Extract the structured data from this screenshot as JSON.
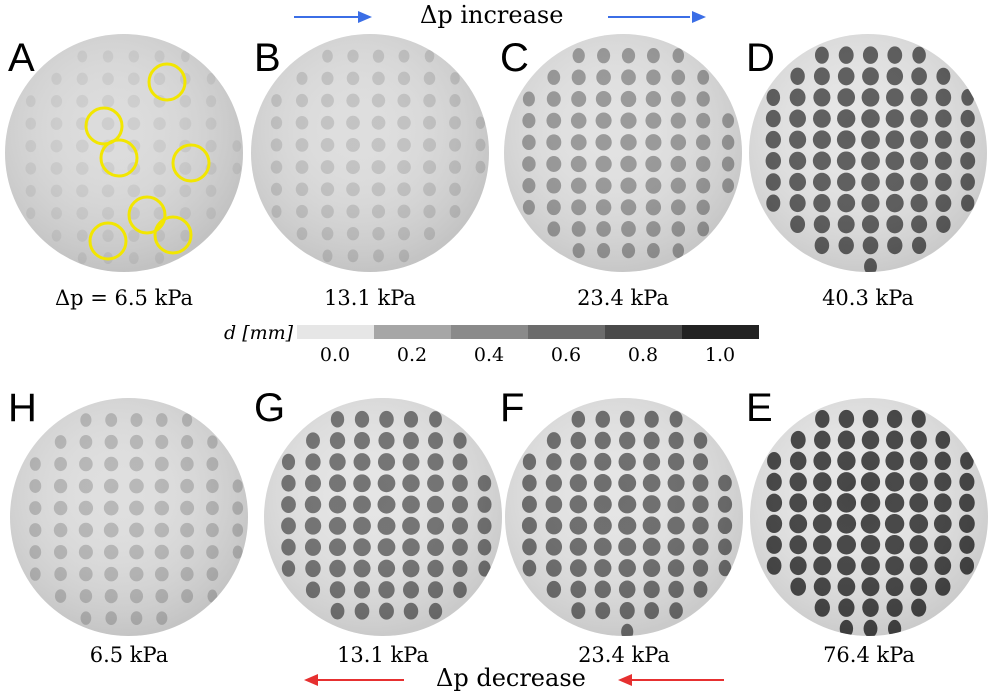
{
  "top_arrow": {
    "label": "Δp increase",
    "color": "#3b6ee6"
  },
  "bottom_arrow": {
    "label": "Δp decrease",
    "color": "#e63030"
  },
  "panels": [
    {
      "letter": "A",
      "caption": "Δp = 6.5 kPa",
      "contrast": 0.12
    },
    {
      "letter": "B",
      "caption": "13.1 kPa",
      "contrast": 0.25
    },
    {
      "letter": "C",
      "caption": "23.4 kPa",
      "contrast": 0.55
    },
    {
      "letter": "D",
      "caption": "40.3 kPa",
      "contrast": 0.85
    },
    {
      "letter": "H",
      "caption": "6.5 kPa",
      "contrast": 0.35
    },
    {
      "letter": "G",
      "caption": "13.1 kPa",
      "contrast": 0.75
    },
    {
      "letter": "F",
      "caption": "23.4 kPa",
      "contrast": 0.78
    },
    {
      "letter": "E",
      "caption": "76.4 kPa",
      "contrast": 0.95
    }
  ],
  "colorbar": {
    "label": "d [mm]",
    "ticks": [
      "0.0",
      "0.2",
      "0.4",
      "0.6",
      "0.8",
      "1.0"
    ],
    "colors": [
      "#e6e6e6",
      "#a6a6a6",
      "#8a8a8a",
      "#6c6c6c",
      "#4a4a4a",
      "#222222"
    ]
  },
  "highlight_color": "#f2e600"
}
